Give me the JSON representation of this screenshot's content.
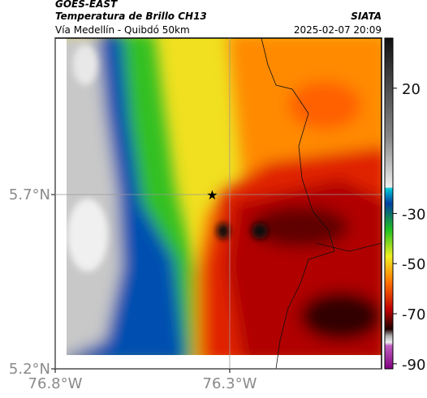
{
  "header": {
    "source": "GOES-EAST",
    "title": "Temperatura de Brillo CH13",
    "org": "SIATA",
    "subtitle": "Vía Medellín - Quibdó 50km",
    "datetime": "2025-02-07 20:09"
  },
  "map": {
    "lonlim": [
      -76.8,
      -75.865
    ],
    "latlim": [
      5.2,
      6.149
    ],
    "lat_ticks": [
      {
        "value": 5.7,
        "label": "5.7°N"
      },
      {
        "value": 5.2,
        "label": "5.2°N"
      }
    ],
    "lon_ticks": [
      {
        "value": -76.8,
        "label": "76.8°W"
      },
      {
        "value": -76.3,
        "label": "76.3°W"
      }
    ],
    "marker": {
      "lon": -76.35,
      "lat": 5.7
    }
  },
  "colorbar": {
    "lim": [
      -92,
      40
    ],
    "ticks": [
      20,
      -30,
      -50,
      -70,
      -90
    ]
  }
}
